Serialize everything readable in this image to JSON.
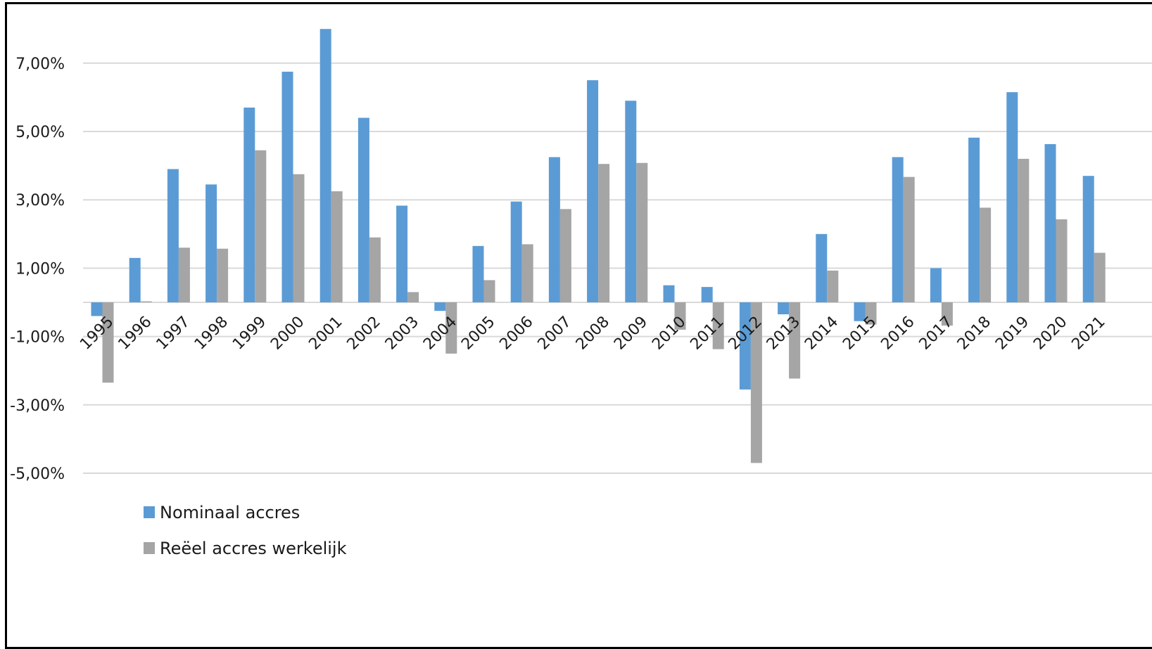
{
  "chart_data": {
    "type": "bar",
    "title": "",
    "xlabel": "",
    "ylabel": "",
    "categories": [
      "1995",
      "1996",
      "1997",
      "1998",
      "1999",
      "2000",
      "2001",
      "2002",
      "2003",
      "2004",
      "2005",
      "2006",
      "2007",
      "2008",
      "2009",
      "2010",
      "2011",
      "2012",
      "2013",
      "2014",
      "2015",
      "2016",
      "2017",
      "2018",
      "2019",
      "2020",
      "2021"
    ],
    "series": [
      {
        "name": "Nominaal accres",
        "color": "#5b9bd5",
        "values": [
          -0.4,
          1.3,
          3.9,
          3.45,
          5.7,
          6.75,
          8.0,
          5.4,
          2.83,
          -0.25,
          1.65,
          2.95,
          4.25,
          6.5,
          5.9,
          0.5,
          0.45,
          -2.55,
          -0.35,
          2.0,
          -0.55,
          4.25,
          1.0,
          4.82,
          6.15,
          4.63,
          3.7
        ]
      },
      {
        "name": "Reëel accres werkelijk",
        "color": "#a5a5a5",
        "values": [
          -2.35,
          0.03,
          1.6,
          1.57,
          4.45,
          3.75,
          3.25,
          1.9,
          0.3,
          -1.5,
          0.65,
          1.7,
          2.73,
          4.05,
          4.08,
          -0.8,
          -1.37,
          -4.7,
          -2.23,
          0.93,
          -0.65,
          3.67,
          -0.68,
          2.77,
          4.2,
          2.43,
          1.45
        ]
      }
    ],
    "yticks": [
      "7,00%",
      "5,00%",
      "3,00%",
      "1,00%",
      "-1,00%",
      "-3,00%",
      "-5,00%"
    ],
    "ytick_values": [
      7,
      5,
      3,
      1,
      -1,
      -3,
      -5
    ],
    "grid": true,
    "legend": "bottom-left"
  }
}
